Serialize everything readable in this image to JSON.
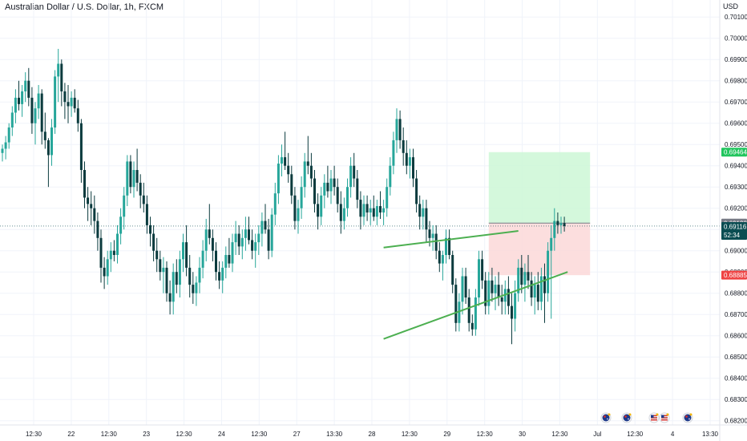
{
  "chart_data": {
    "type": "candlestick",
    "title": "Australian Dollar / U.S. Dollar, 1h, FXCM",
    "ylabel": "USD",
    "ylim": [
      0.6818,
      0.7018
    ],
    "y_ticks": [
      "0.70100",
      "0.70000",
      "0.69900",
      "0.69800",
      "0.69700",
      "0.69600",
      "0.69500",
      "0.69400",
      "0.69300",
      "0.69200",
      "0.69100",
      "0.69000",
      "0.68900",
      "0.68800",
      "0.68700",
      "0.68600",
      "0.68500",
      "0.68400",
      "0.68300",
      "0.68200"
    ],
    "x_ticks": [
      "12:30",
      "22",
      "12:30",
      "23",
      "12:30",
      "24",
      "12:30",
      "27",
      "13:30",
      "28",
      "12:30",
      "29",
      "12:30",
      "30",
      "12:30",
      "Jul",
      "12:30",
      "4",
      "13:30"
    ],
    "grid": true,
    "candle_count": 180,
    "candles": [
      [
        0.6946,
        0.695,
        0.6942,
        0.6948
      ],
      [
        0.6948,
        0.6954,
        0.6943,
        0.6951
      ],
      [
        0.6951,
        0.696,
        0.6948,
        0.6958
      ],
      [
        0.6958,
        0.6968,
        0.6954,
        0.6965
      ],
      [
        0.6965,
        0.6976,
        0.696,
        0.6972
      ],
      [
        0.6972,
        0.698,
        0.6966,
        0.6969
      ],
      [
        0.6969,
        0.6978,
        0.6963,
        0.6975
      ],
      [
        0.6975,
        0.6984,
        0.697,
        0.698
      ],
      [
        0.698,
        0.6986,
        0.6968,
        0.6972
      ],
      [
        0.6972,
        0.6977,
        0.6955,
        0.696
      ],
      [
        0.696,
        0.697,
        0.695,
        0.6967
      ],
      [
        0.6967,
        0.6978,
        0.6962,
        0.6974
      ],
      [
        0.6974,
        0.6976,
        0.695,
        0.6956
      ],
      [
        0.6956,
        0.6965,
        0.6948,
        0.6952
      ],
      [
        0.6952,
        0.6953,
        0.693,
        0.6945
      ],
      [
        0.6945,
        0.6962,
        0.694,
        0.6958
      ],
      [
        0.6958,
        0.6985,
        0.6955,
        0.6982
      ],
      [
        0.6982,
        0.6995,
        0.697,
        0.6988
      ],
      [
        0.6988,
        0.699,
        0.6968,
        0.6975
      ],
      [
        0.6975,
        0.6979,
        0.6962,
        0.697
      ],
      [
        0.697,
        0.6978,
        0.696,
        0.6968
      ],
      [
        0.6968,
        0.6975,
        0.6963,
        0.6972
      ],
      [
        0.6972,
        0.6976,
        0.6965,
        0.6967
      ],
      [
        0.6967,
        0.6971,
        0.6956,
        0.696
      ],
      [
        0.696,
        0.6962,
        0.6932,
        0.6938
      ],
      [
        0.6938,
        0.6942,
        0.692,
        0.6925
      ],
      [
        0.6925,
        0.693,
        0.6914,
        0.6922
      ],
      [
        0.6922,
        0.6928,
        0.6912,
        0.692
      ],
      [
        0.692,
        0.6926,
        0.6908,
        0.6914
      ],
      [
        0.6914,
        0.6918,
        0.69,
        0.6906
      ],
      [
        0.6906,
        0.691,
        0.6885,
        0.6892
      ],
      [
        0.6892,
        0.6897,
        0.6882,
        0.6888
      ],
      [
        0.6888,
        0.69,
        0.6884,
        0.6896
      ],
      [
        0.6896,
        0.6904,
        0.689,
        0.69
      ],
      [
        0.69,
        0.6905,
        0.6895,
        0.6898
      ],
      [
        0.6898,
        0.6912,
        0.6894,
        0.6908
      ],
      [
        0.6908,
        0.692,
        0.6903,
        0.6916
      ],
      [
        0.6916,
        0.693,
        0.691,
        0.6926
      ],
      [
        0.6926,
        0.6945,
        0.6921,
        0.6942
      ],
      [
        0.6942,
        0.6945,
        0.6927,
        0.693
      ],
      [
        0.693,
        0.6942,
        0.6925,
        0.6938
      ],
      [
        0.6938,
        0.6948,
        0.6928,
        0.6932
      ],
      [
        0.6932,
        0.6936,
        0.692,
        0.6926
      ],
      [
        0.6926,
        0.6932,
        0.6918,
        0.6922
      ],
      [
        0.6922,
        0.6926,
        0.6908,
        0.6912
      ],
      [
        0.6912,
        0.6916,
        0.6902,
        0.6908
      ],
      [
        0.6908,
        0.6912,
        0.6895,
        0.69
      ],
      [
        0.69,
        0.6906,
        0.689,
        0.6896
      ],
      [
        0.6896,
        0.69,
        0.6886,
        0.689
      ],
      [
        0.689,
        0.6897,
        0.688,
        0.6892
      ],
      [
        0.6892,
        0.6895,
        0.6876,
        0.688
      ],
      [
        0.688,
        0.6886,
        0.687,
        0.6876
      ],
      [
        0.6876,
        0.6894,
        0.687,
        0.689
      ],
      [
        0.689,
        0.6896,
        0.688,
        0.6884
      ],
      [
        0.6884,
        0.69,
        0.6878,
        0.6896
      ],
      [
        0.6896,
        0.6908,
        0.689,
        0.6904
      ],
      [
        0.6904,
        0.6912,
        0.6888,
        0.6892
      ],
      [
        0.6892,
        0.6898,
        0.6878,
        0.6884
      ],
      [
        0.6884,
        0.689,
        0.6875,
        0.688
      ],
      [
        0.688,
        0.6888,
        0.6874,
        0.6885
      ],
      [
        0.6885,
        0.6897,
        0.688,
        0.6892
      ],
      [
        0.6892,
        0.6905,
        0.6887,
        0.69
      ],
      [
        0.69,
        0.6915,
        0.6895,
        0.691
      ],
      [
        0.691,
        0.6922,
        0.6903,
        0.6906
      ],
      [
        0.6906,
        0.691,
        0.6895,
        0.69
      ],
      [
        0.69,
        0.6904,
        0.6886,
        0.689
      ],
      [
        0.689,
        0.6895,
        0.6882,
        0.6886
      ],
      [
        0.6886,
        0.6895,
        0.688,
        0.6892
      ],
      [
        0.6892,
        0.6902,
        0.6887,
        0.6898
      ],
      [
        0.6898,
        0.6906,
        0.6892,
        0.6894
      ],
      [
        0.6894,
        0.6908,
        0.689,
        0.6904
      ],
      [
        0.6904,
        0.6914,
        0.6898,
        0.6908
      ],
      [
        0.6908,
        0.6912,
        0.6898,
        0.6902
      ],
      [
        0.6902,
        0.691,
        0.6896,
        0.6906
      ],
      [
        0.6906,
        0.6916,
        0.69,
        0.691
      ],
      [
        0.691,
        0.6916,
        0.6903,
        0.6905
      ],
      [
        0.6905,
        0.691,
        0.6896,
        0.69
      ],
      [
        0.69,
        0.6908,
        0.6892,
        0.6904
      ],
      [
        0.6904,
        0.6912,
        0.6898,
        0.6908
      ],
      [
        0.6908,
        0.6918,
        0.6902,
        0.6914
      ],
      [
        0.6914,
        0.6922,
        0.6908,
        0.691
      ],
      [
        0.691,
        0.6915,
        0.6896,
        0.69
      ],
      [
        0.69,
        0.692,
        0.6897,
        0.6917
      ],
      [
        0.6917,
        0.6932,
        0.6912,
        0.6927
      ],
      [
        0.6927,
        0.6945,
        0.6922,
        0.6941
      ],
      [
        0.6941,
        0.695,
        0.6935,
        0.6944
      ],
      [
        0.6944,
        0.6956,
        0.6938,
        0.694
      ],
      [
        0.694,
        0.6946,
        0.6932,
        0.6936
      ],
      [
        0.6936,
        0.694,
        0.6922,
        0.6926
      ],
      [
        0.6926,
        0.693,
        0.691,
        0.6914
      ],
      [
        0.6914,
        0.6924,
        0.6908,
        0.692
      ],
      [
        0.692,
        0.6935,
        0.6915,
        0.693
      ],
      [
        0.693,
        0.6946,
        0.6925,
        0.6942
      ],
      [
        0.6942,
        0.6954,
        0.6936,
        0.694
      ],
      [
        0.694,
        0.6946,
        0.693,
        0.6934
      ],
      [
        0.6934,
        0.6938,
        0.6918,
        0.6922
      ],
      [
        0.6922,
        0.6927,
        0.691,
        0.6916
      ],
      [
        0.6916,
        0.693,
        0.6912,
        0.6926
      ],
      [
        0.6926,
        0.6936,
        0.692,
        0.6932
      ],
      [
        0.6932,
        0.694,
        0.6925,
        0.6928
      ],
      [
        0.6928,
        0.6938,
        0.6922,
        0.6934
      ],
      [
        0.6934,
        0.694,
        0.6926,
        0.693
      ],
      [
        0.693,
        0.6934,
        0.6918,
        0.6922
      ],
      [
        0.6922,
        0.6928,
        0.6908,
        0.6914
      ],
      [
        0.6914,
        0.6925,
        0.691,
        0.692
      ],
      [
        0.692,
        0.6934,
        0.6916,
        0.693
      ],
      [
        0.693,
        0.6944,
        0.6925,
        0.694
      ],
      [
        0.694,
        0.6946,
        0.693,
        0.6934
      ],
      [
        0.6934,
        0.6938,
        0.692,
        0.6924
      ],
      [
        0.6924,
        0.6928,
        0.691,
        0.6916
      ],
      [
        0.6916,
        0.6926,
        0.6912,
        0.6922
      ],
      [
        0.6922,
        0.6926,
        0.6914,
        0.6918
      ],
      [
        0.6918,
        0.6924,
        0.6912,
        0.692
      ],
      [
        0.692,
        0.6926,
        0.6914,
        0.6916
      ],
      [
        0.6916,
        0.6924,
        0.6912,
        0.6921
      ],
      [
        0.6921,
        0.6928,
        0.6915,
        0.6918
      ],
      [
        0.6918,
        0.6924,
        0.6912,
        0.692
      ],
      [
        0.692,
        0.6934,
        0.6916,
        0.693
      ],
      [
        0.693,
        0.6944,
        0.6926,
        0.694
      ],
      [
        0.694,
        0.6956,
        0.6936,
        0.6952
      ],
      [
        0.6952,
        0.6967,
        0.6946,
        0.6962
      ],
      [
        0.6962,
        0.6966,
        0.6948,
        0.6952
      ],
      [
        0.6952,
        0.6958,
        0.694,
        0.6946
      ],
      [
        0.6946,
        0.6952,
        0.6936,
        0.694
      ],
      [
        0.694,
        0.6948,
        0.6934,
        0.6944
      ],
      [
        0.6944,
        0.6948,
        0.693,
        0.6934
      ],
      [
        0.6934,
        0.6938,
        0.6918,
        0.6922
      ],
      [
        0.6922,
        0.6926,
        0.691,
        0.6916
      ],
      [
        0.6916,
        0.6924,
        0.691,
        0.692
      ],
      [
        0.692,
        0.6924,
        0.6904,
        0.691
      ],
      [
        0.691,
        0.6914,
        0.6902,
        0.6906
      ],
      [
        0.6906,
        0.6912,
        0.69,
        0.6908
      ],
      [
        0.6908,
        0.6912,
        0.6896,
        0.69
      ],
      [
        0.69,
        0.6904,
        0.689,
        0.6894
      ],
      [
        0.6894,
        0.69,
        0.6886,
        0.6898
      ],
      [
        0.6898,
        0.691,
        0.6894,
        0.6906
      ],
      [
        0.6906,
        0.691,
        0.6896,
        0.6898
      ],
      [
        0.6898,
        0.69,
        0.688,
        0.6884
      ],
      [
        0.6884,
        0.6887,
        0.6862,
        0.6866
      ],
      [
        0.6866,
        0.688,
        0.6862,
        0.6876
      ],
      [
        0.6876,
        0.6892,
        0.687,
        0.6888
      ],
      [
        0.6888,
        0.6892,
        0.6875,
        0.6878
      ],
      [
        0.6878,
        0.6882,
        0.6862,
        0.6866
      ],
      [
        0.6866,
        0.687,
        0.686,
        0.6863
      ],
      [
        0.6863,
        0.6882,
        0.686,
        0.6878
      ],
      [
        0.6878,
        0.69,
        0.6874,
        0.6896
      ],
      [
        0.6896,
        0.69,
        0.6882,
        0.6886
      ],
      [
        0.6886,
        0.689,
        0.687,
        0.6874
      ],
      [
        0.6874,
        0.689,
        0.687,
        0.6886
      ],
      [
        0.6886,
        0.6892,
        0.6876,
        0.688
      ],
      [
        0.688,
        0.6888,
        0.6872,
        0.6884
      ],
      [
        0.6884,
        0.689,
        0.6874,
        0.6878
      ],
      [
        0.6878,
        0.6884,
        0.687,
        0.6876
      ],
      [
        0.6876,
        0.6886,
        0.687,
        0.6882
      ],
      [
        0.6882,
        0.6888,
        0.687,
        0.6874
      ],
      [
        0.6874,
        0.688,
        0.6856,
        0.6868
      ],
      [
        0.6868,
        0.6886,
        0.6862,
        0.688
      ],
      [
        0.688,
        0.6896,
        0.6876,
        0.6892
      ],
      [
        0.6892,
        0.6898,
        0.688,
        0.6884
      ],
      [
        0.6884,
        0.6894,
        0.6876,
        0.689
      ],
      [
        0.689,
        0.6898,
        0.6882,
        0.6886
      ],
      [
        0.6886,
        0.689,
        0.6874,
        0.6878
      ],
      [
        0.6878,
        0.6888,
        0.687,
        0.6884
      ],
      [
        0.6884,
        0.689,
        0.6872,
        0.6876
      ],
      [
        0.6876,
        0.6892,
        0.6872,
        0.6888
      ],
      [
        0.6888,
        0.6894,
        0.6866,
        0.688
      ],
      [
        0.688,
        0.6904,
        0.6876,
        0.69
      ],
      [
        0.69,
        0.6912,
        0.6868,
        0.6906
      ],
      [
        0.6906,
        0.692,
        0.69,
        0.6914
      ],
      [
        0.6914,
        0.6918,
        0.6908,
        0.6912
      ],
      [
        0.6912,
        0.6916,
        0.6908,
        0.6913
      ],
      [
        0.6913,
        0.6916,
        0.6909,
        0.69116
      ]
    ],
    "trendlines": [
      {
        "name": "upper-channel-line",
        "x": [
          116,
          157
        ],
        "y": [
          0.69015,
          0.69093
        ],
        "color": "#4caf50"
      },
      {
        "name": "lower-channel-line",
        "x": [
          116,
          172
        ],
        "y": [
          0.68585,
          0.689
        ],
        "color": "#4caf50"
      }
    ],
    "position": {
      "entry": 0.6913,
      "target": 0.69464,
      "stop": 0.68885,
      "x_start": 148,
      "x_end": 172,
      "profit_color": "#ccf7d6",
      "loss_color": "#fbd8d8"
    },
    "price_labels": [
      {
        "value": 0.69464,
        "text": "0.69464",
        "bg": "#22c55e",
        "fg": "#ffffff"
      },
      {
        "value": 0.6913,
        "text": "0.69130",
        "bg": "#787b86",
        "fg": "#ffffff"
      },
      {
        "value": 0.69116,
        "text": "0.69116",
        "subtext": "52:34",
        "bg": "#0b4d52",
        "fg": "#ffffff"
      },
      {
        "value": 0.68885,
        "text": "0.68885",
        "bg": "#ef4444",
        "fg": "#ffffff"
      }
    ],
    "colors": {
      "up": "#26a69a",
      "down": "#0b3b3e",
      "grid": "#f0f3fa",
      "axis_text": "#131722"
    }
  },
  "event_icons": [
    "australia-flag-icon",
    "australia-flag-icon",
    "usa-flag-icon",
    "usa-flag-icon",
    "australia-flag-icon"
  ]
}
